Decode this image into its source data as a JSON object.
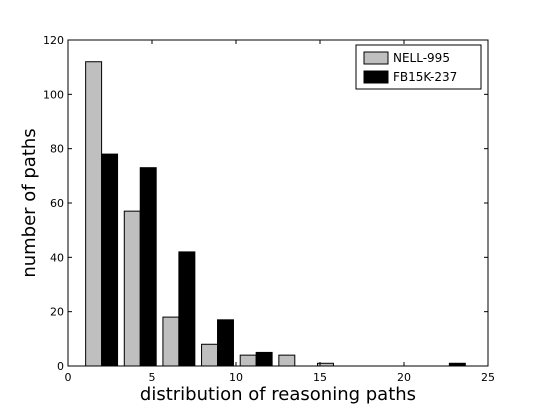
{
  "chart_data": {
    "type": "bar",
    "x": [
      2,
      4.3,
      6.6,
      8.9,
      11.2,
      13.5,
      15.8,
      18.1,
      20.4,
      22.7
    ],
    "series": [
      {
        "name": "NELL-995",
        "color": "#bfbfbf",
        "values": [
          112,
          57,
          18,
          8,
          4,
          4,
          1,
          0,
          0,
          0
        ]
      },
      {
        "name": "FB15K-237",
        "color": "#000000",
        "values": [
          78,
          73,
          42,
          17,
          5,
          0,
          0,
          0,
          0,
          1
        ]
      }
    ],
    "xlabel": "distribution of reasoning paths",
    "ylabel": "number of paths",
    "xlim": [
      0,
      25
    ],
    "ylim": [
      0,
      120
    ],
    "xticks": [
      "0",
      "5",
      "10",
      "15",
      "20",
      "25"
    ],
    "yticks": [
      "0",
      "20",
      "40",
      "60",
      "80",
      "100",
      "120"
    ],
    "legend_position": "top-right",
    "grid": false
  }
}
